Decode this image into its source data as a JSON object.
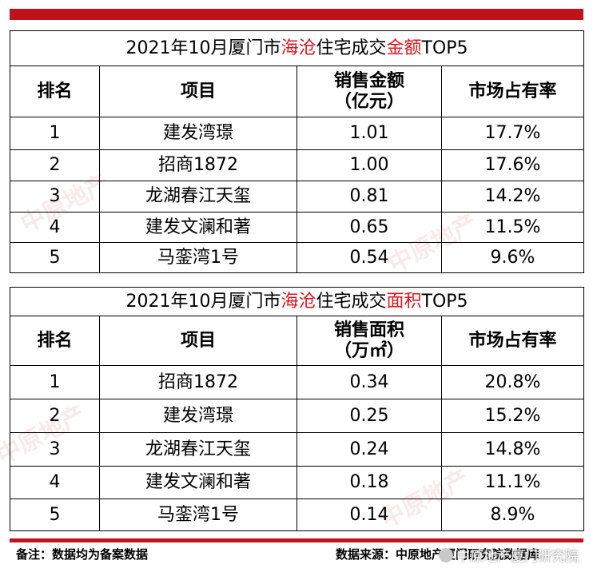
{
  "table1": {
    "title_prefix": "2021年10月厦门市",
    "title_area": "海沧",
    "title_mid": "住宅成交",
    "title_metric": "金额",
    "title_suffix": "TOP5",
    "headers": [
      "排名",
      "项目",
      "销售金额\n（亿元）",
      "市场占有率"
    ],
    "rows": [
      [
        "1",
        "建发湾璟",
        "1.01",
        "17.7%"
      ],
      [
        "2",
        "招商1872",
        "1.00",
        "17.6%"
      ],
      [
        "3",
        "龙湖春江天玺",
        "0.81",
        "14.2%"
      ],
      [
        "4",
        "建发文澜和著",
        "0.65",
        "11.5%"
      ],
      [
        "5",
        "马銮湾1号",
        "0.54",
        "9.6%"
      ]
    ]
  },
  "table2": {
    "title_prefix": "2021年10月厦门市",
    "title_area": "海沧",
    "title_mid": "住宅成交",
    "title_metric": "面积",
    "title_suffix": "TOP5",
    "headers": [
      "排名",
      "项目",
      "销售面积\n（万㎡）",
      "市场占有率"
    ],
    "rows": [
      [
        "1",
        "招商1872",
        "0.34",
        "20.8%"
      ],
      [
        "2",
        "建发湾璟",
        "0.25",
        "15.2%"
      ],
      [
        "3",
        "龙湖春江天玺",
        "0.24",
        "14.8%"
      ],
      [
        "4",
        "建发文澜和著",
        "0.18",
        "11.1%"
      ],
      [
        "5",
        "马銮湾1号",
        "0.14",
        "8.9%"
      ]
    ]
  },
  "footer": {
    "note": "备注：数据均为备案数据",
    "source": "数据来源：中原地产厦门研究院数据库",
    "brand": "中原地产厦门研究院"
  },
  "watermark": "中原地产",
  "colors": {
    "accent": "#c0121b",
    "highlight": "#e0131c"
  }
}
